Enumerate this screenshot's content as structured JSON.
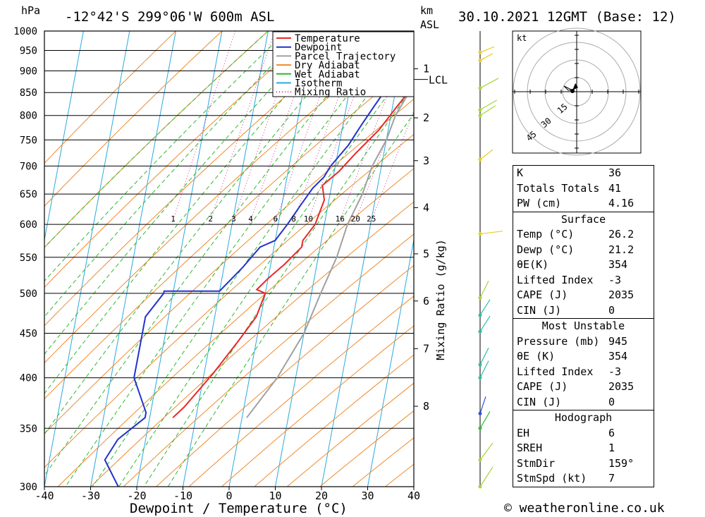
{
  "header": {
    "pressure_unit": "hPa",
    "location": "-12°42'S  299°06'W  600m  ASL",
    "km_label": "km",
    "asl_label": "ASL",
    "datetime": "30.10.2021  12GMT  (Base: 12)"
  },
  "chart_data": {
    "type": "line",
    "title": "-12°42'S  299°06'W  600m  ASL",
    "xlabel": "Dewpoint / Temperature (°C)",
    "ylabel": "hPa",
    "y2label": "Mixing Ratio (g/kg)",
    "xlim": [
      -40,
      40
    ],
    "ylim": [
      1000,
      300
    ],
    "x_ticks": [
      -40,
      -30,
      -20,
      -10,
      0,
      10,
      20,
      30,
      40
    ],
    "p_ticks": [
      300,
      350,
      400,
      450,
      500,
      550,
      600,
      650,
      700,
      750,
      800,
      850,
      900,
      950,
      1000
    ],
    "km_ticks": [
      {
        "label": "8",
        "p": 371
      },
      {
        "label": "7",
        "p": 432
      },
      {
        "label": "6",
        "p": 490
      },
      {
        "label": "5",
        "p": 555
      },
      {
        "label": "4",
        "p": 627
      },
      {
        "label": "3",
        "p": 710
      },
      {
        "label": "2",
        "p": 795
      },
      {
        "label": "1",
        "p": 905
      }
    ],
    "lcl": {
      "label": "LCL",
      "p": 880
    },
    "mixing_ratio_labels": [
      "1",
      "2",
      "3",
      "4",
      "6",
      "8",
      "10",
      "16",
      "20",
      "25"
    ],
    "legend": [
      "Temperature",
      "Dewpoint",
      "Parcel Trajectory",
      "Dry Adiabat",
      "Wet Adiabat",
      "Isotherm",
      "Mixing Ratio"
    ],
    "series": [
      {
        "name": "Temperature",
        "color": "#e8282a",
        "points": [
          [
            29,
            945
          ],
          [
            28,
            935
          ],
          [
            27,
            915
          ],
          [
            24,
            870
          ],
          [
            21,
            820
          ],
          [
            18,
            770
          ],
          [
            14,
            725
          ],
          [
            11,
            690
          ],
          [
            8,
            665
          ],
          [
            9,
            640
          ],
          [
            8,
            600
          ],
          [
            6,
            575
          ],
          [
            6,
            565
          ],
          [
            3,
            540
          ],
          [
            0,
            520
          ],
          [
            -2,
            505
          ],
          [
            0,
            500
          ],
          [
            -1,
            470
          ],
          [
            -4,
            440
          ],
          [
            -8,
            405
          ],
          [
            -13,
            370
          ],
          [
            -15,
            360
          ]
        ]
      },
      {
        "name": "Dewpoint",
        "color": "#2233cc",
        "points": [
          [
            21,
            945
          ],
          [
            20,
            940
          ],
          [
            19,
            900
          ],
          [
            18,
            860
          ],
          [
            16,
            820
          ],
          [
            14,
            780
          ],
          [
            12,
            740
          ],
          [
            9,
            700
          ],
          [
            8,
            680
          ],
          [
            6,
            660
          ],
          [
            4,
            630
          ],
          [
            2,
            600
          ],
          [
            0,
            575
          ],
          [
            -3,
            565
          ],
          [
            -6,
            535
          ],
          [
            -10,
            503
          ],
          [
            -22,
            503
          ],
          [
            -22,
            500
          ],
          [
            -25,
            470
          ],
          [
            -25,
            430
          ],
          [
            -25,
            400
          ],
          [
            -21,
            365
          ],
          [
            -21,
            360
          ],
          [
            -26,
            340
          ],
          [
            -28,
            322
          ],
          [
            -24,
            300
          ]
        ]
      },
      {
        "name": "Parcel Trajectory",
        "color": "#a0a0a0",
        "points": [
          [
            26,
            945
          ],
          [
            24,
            900
          ],
          [
            23,
            850
          ],
          [
            21,
            800
          ],
          [
            20,
            750
          ],
          [
            18,
            700
          ],
          [
            17,
            650
          ],
          [
            15,
            600
          ],
          [
            14,
            550
          ],
          [
            12,
            500
          ],
          [
            10,
            450
          ],
          [
            6,
            400
          ],
          [
            1,
            360
          ]
        ]
      }
    ]
  },
  "hodograph": {
    "unit_label": "kt",
    "ring_labels": [
      "15",
      "30",
      "45"
    ]
  },
  "stats": {
    "k_label": "K",
    "k": "36",
    "tt_label": "Totals Totals",
    "tt": "41",
    "pw_label": "PW (cm)",
    "pw": "4.16",
    "surface_title": "Surface",
    "s_temp_label": "Temp (°C)",
    "s_temp": "26.2",
    "s_dewp_label": "Dewp (°C)",
    "s_dewp": "21.2",
    "s_thetae_label": "θE(K)",
    "s_thetae": "354",
    "s_li_label": "Lifted Index",
    "s_li": "-3",
    "s_cape_label": "CAPE (J)",
    "s_cape": "2035",
    "s_cin_label": "CIN (J)",
    "s_cin": "0",
    "mu_title": "Most Unstable",
    "mu_pres_label": "Pressure (mb)",
    "mu_pres": "945",
    "mu_thetae_label": "θE (K)",
    "mu_thetae": "354",
    "mu_li_label": "Lifted Index",
    "mu_li": "-3",
    "mu_cape_label": "CAPE (J)",
    "mu_cape": "2035",
    "mu_cin_label": "CIN (J)",
    "mu_cin": "0",
    "hodo_title": "Hodograph",
    "eh_label": "EH",
    "eh": "6",
    "sreh_label": "SREH",
    "sreh": "1",
    "stmdir_label": "StmDir",
    "stmdir": "159°",
    "stmspd_label": "StmSpd (kt)",
    "stmspd": "7"
  },
  "footer": {
    "credit": "© weatheronline.co.uk"
  }
}
